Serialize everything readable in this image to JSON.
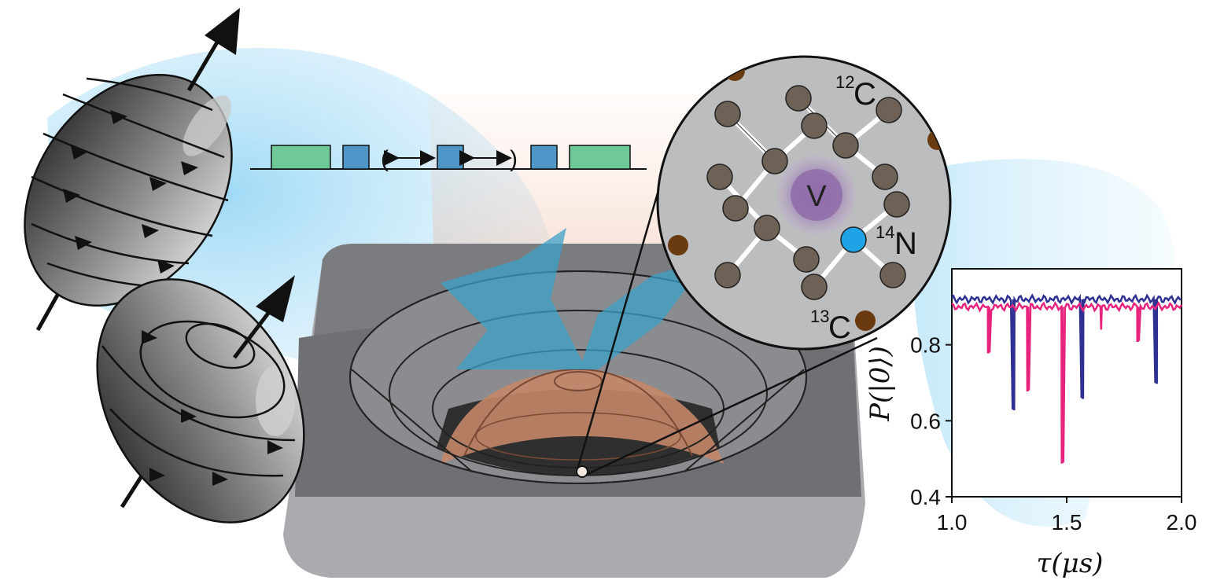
{
  "pulse_sequence": {
    "open_paren": "(",
    "close_paren": ")",
    "colors": {
      "pi2": "#6fc898",
      "pi": "#4f96c8"
    }
  },
  "lattice": {
    "vacancy_label": "V",
    "nitrogen_label": "N",
    "nitrogen_mass": "14",
    "carbon12_label": "C",
    "carbon12_mass": "12",
    "carbon13_label": "C",
    "carbon13_mass": "13",
    "colors": {
      "carbon": "#6e6256",
      "nitrogen": "#1ea3e6",
      "carbon13": "#6a3a10",
      "vacancy": "#8f6ba9"
    }
  },
  "chart_data": {
    "type": "line",
    "xlabel": "τ(μs)",
    "ylabel": "P(|0⟩)",
    "xlim": [
      1.0,
      2.0
    ],
    "ylim": [
      0.4,
      1.0
    ],
    "x_ticks": [
      "1.0",
      "1.5",
      "2.0"
    ],
    "y_ticks": [
      "0.4",
      "0.6",
      "0.8"
    ],
    "series": [
      {
        "color": "#2e3192",
        "baseline": 0.92,
        "dips": [
          [
            1.27,
            0.63
          ],
          [
            1.57,
            0.66
          ],
          [
            1.89,
            0.7
          ]
        ]
      },
      {
        "color": "#e8237d",
        "baseline": 0.9,
        "dips": [
          [
            1.16,
            0.78
          ],
          [
            1.33,
            0.68
          ],
          [
            1.48,
            0.49
          ],
          [
            1.65,
            0.84
          ],
          [
            1.81,
            0.81
          ]
        ]
      }
    ]
  }
}
